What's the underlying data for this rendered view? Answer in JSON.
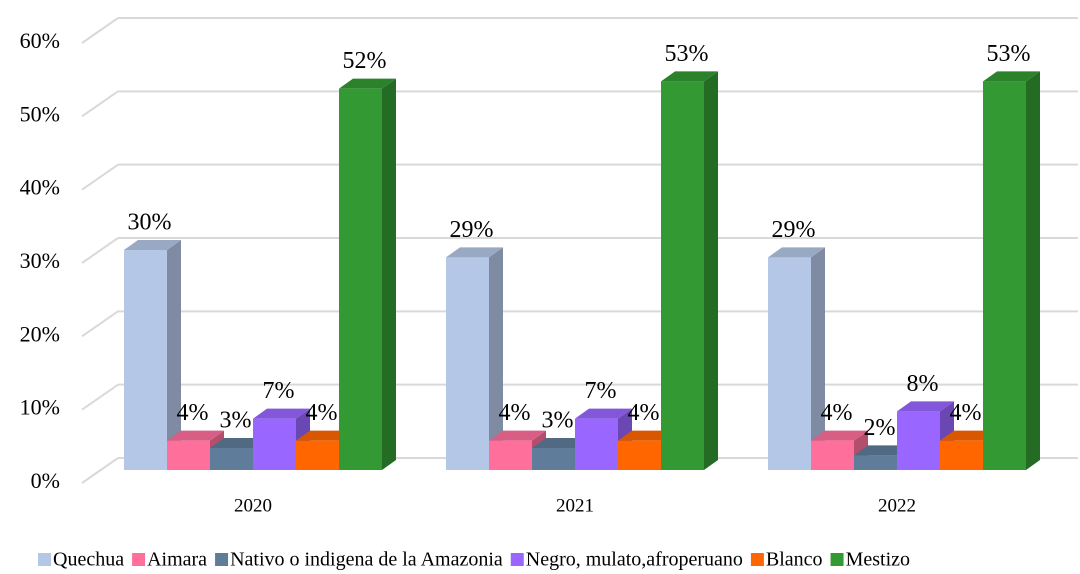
{
  "chart_data": {
    "type": "bar3d",
    "categories": [
      "2020",
      "2021",
      "2022"
    ],
    "series": [
      {
        "name": "Quechua",
        "color": "#b4c7e7",
        "values": [
          30,
          29,
          29
        ],
        "value_labels": [
          "30%",
          "29%",
          "29%"
        ]
      },
      {
        "name": "Aimara",
        "color": "#ff6f9c",
        "values": [
          4,
          4,
          4
        ],
        "value_labels": [
          "4%",
          "4%",
          "4%"
        ]
      },
      {
        "name": "Nativo o indigena de la Amazonia",
        "color": "#5f7c9a",
        "values": [
          3,
          3,
          2
        ],
        "value_labels": [
          "3%",
          "3%",
          "2%"
        ]
      },
      {
        "name": "Negro, mulato,afroperuano",
        "color": "#9966ff",
        "values": [
          7,
          7,
          8
        ],
        "value_labels": [
          "7%",
          "7%",
          "8%"
        ]
      },
      {
        "name": "Blanco",
        "color": "#ff6600",
        "values": [
          4,
          4,
          4
        ],
        "value_labels": [
          "4%",
          "4%",
          "4%"
        ]
      },
      {
        "name": "Mestizo",
        "color": "#339933",
        "values": [
          52,
          53,
          53
        ],
        "value_labels": [
          "52%",
          "53%",
          "53%"
        ]
      }
    ],
    "ylim": [
      0,
      60
    ],
    "yticks": [
      {
        "value": 0,
        "label": "0%"
      },
      {
        "value": 10,
        "label": "10%"
      },
      {
        "value": 20,
        "label": "20%"
      },
      {
        "value": 30,
        "label": "30%"
      },
      {
        "value": 40,
        "label": "40%"
      },
      {
        "value": 50,
        "label": "50%"
      },
      {
        "value": 60,
        "label": "60%"
      }
    ],
    "grid": true,
    "legend": "bottom"
  }
}
